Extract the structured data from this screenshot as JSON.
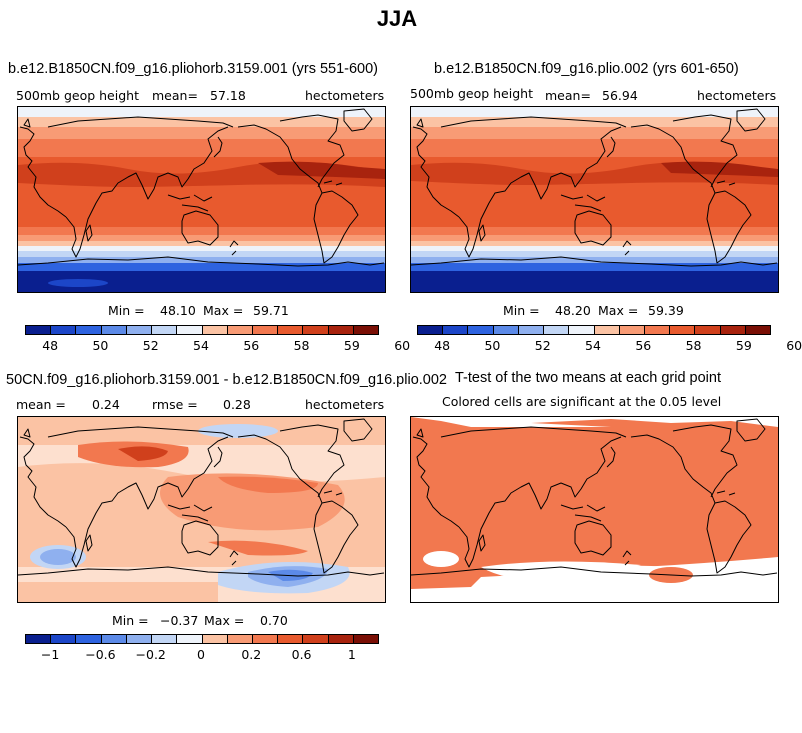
{
  "title": "JJA",
  "colors": {
    "scale_full": [
      "#0a1f8f",
      "#1c46c8",
      "#2e63e0",
      "#5c8ae8",
      "#8fb0ef",
      "#c2d6f5",
      "#eef3fa",
      "#fde0cf",
      "#fbc3a4",
      "#f89b75",
      "#f2784f",
      "#e85a2e",
      "#d0401c",
      "#a8230e",
      "#7a0f05"
    ],
    "pure_white": "#ffffff",
    "significance": "#f2784f"
  },
  "panels": {
    "p1": {
      "title": "b.e12.B1850CN.f09_g16.pliohorb.3159.001 (yrs 551-600)",
      "variable": "500mb  geop height",
      "mean_label": "mean=",
      "mean_value": "57.18",
      "units": "hectometers",
      "min_label": "Min =",
      "min_value": "48.10",
      "max_label": "Max =",
      "max_value": "59.71",
      "colorbar_ticks": [
        "48",
        "50",
        "52",
        "54",
        "56",
        "58",
        "59",
        "60"
      ]
    },
    "p2": {
      "title": "b.e12.B1850CN.f09_g16.plio.002 (yrs 601-650)",
      "variable": "500mb  geop height",
      "mean_label": "mean=",
      "mean_value": "56.94",
      "units": "hectometers",
      "min_label": "Min =",
      "min_value": "48.20",
      "max_label": "Max =",
      "max_value": "59.39",
      "colorbar_ticks": [
        "48",
        "50",
        "52",
        "54",
        "56",
        "58",
        "59",
        "60"
      ]
    },
    "p3": {
      "title": "50CN.f09_g16.pliohorb.3159.001 - b.e12.B1850CN.f09_g16.plio.002",
      "mean_label": "mean =",
      "mean_value": "0.24",
      "rmse_label": "rmse =",
      "rmse_value": "0.28",
      "units": "hectometers",
      "min_label": "Min =",
      "min_value": "−0.37",
      "max_label": "Max =",
      "max_value": "0.70",
      "colorbar_ticks": [
        "−1",
        "−0.6",
        "−0.2",
        "0",
        "0.2",
        "0.6",
        "1"
      ]
    },
    "p4": {
      "title": "T-test of the two means at each grid point",
      "subtitle": "Colored cells are significant at the 0.05 level"
    }
  }
}
